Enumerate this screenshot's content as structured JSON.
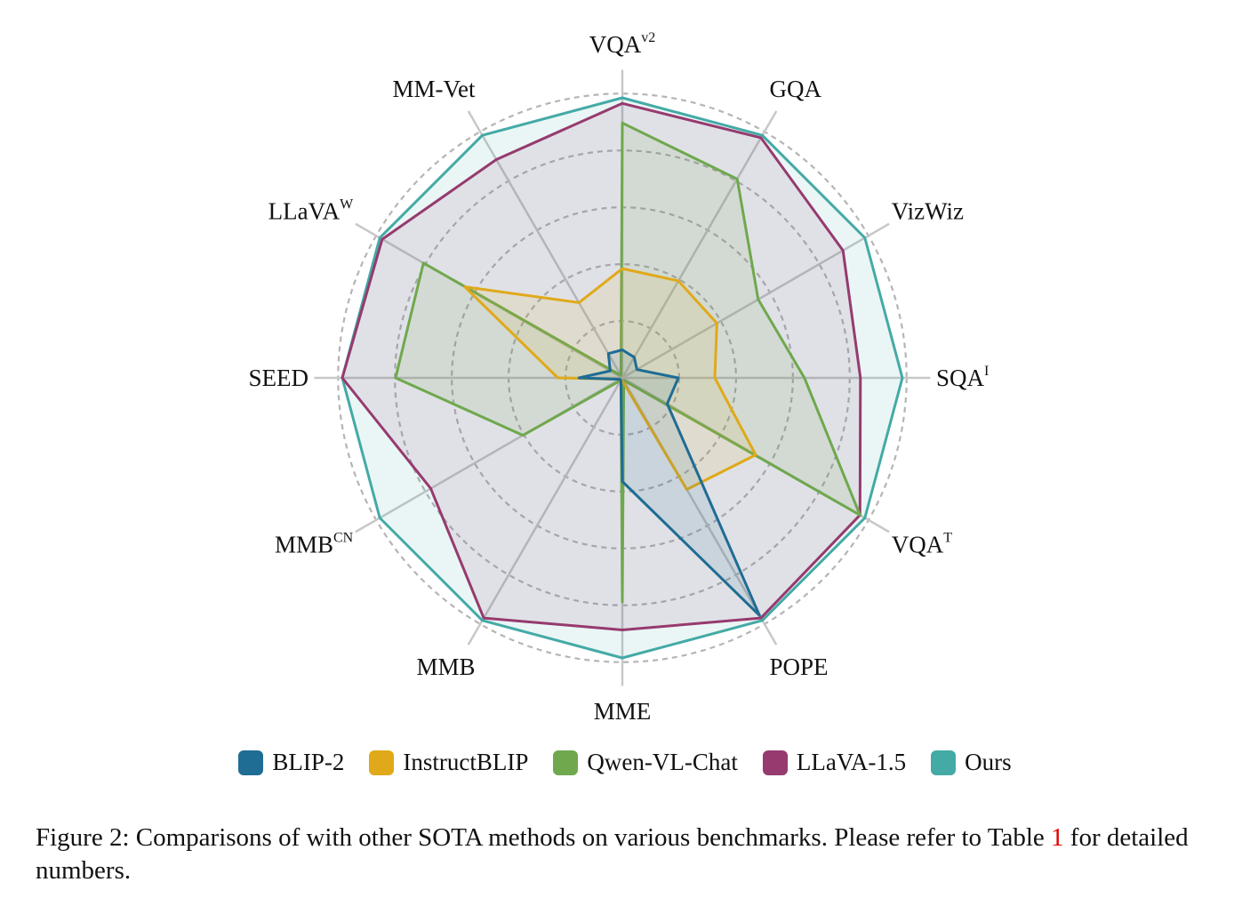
{
  "chart_data": {
    "type": "radar",
    "axes": [
      {
        "label": "VQA",
        "sup": "v2"
      },
      {
        "label": "GQA",
        "sup": ""
      },
      {
        "label": "VizWiz",
        "sup": ""
      },
      {
        "label": "SQA",
        "sup": "I"
      },
      {
        "label": "VQA",
        "sup": "T"
      },
      {
        "label": "POPE",
        "sup": ""
      },
      {
        "label": "MME",
        "sup": ""
      },
      {
        "label": "MMB",
        "sup": ""
      },
      {
        "label": "MMB",
        "sup": "CN"
      },
      {
        "label": "SEED",
        "sup": ""
      },
      {
        "label": "LLaVA",
        "sup": "W"
      },
      {
        "label": "MM-Vet",
        "sup": ""
      }
    ],
    "scale": {
      "min": 0,
      "max": 1,
      "rings": [
        0.2,
        0.4,
        0.6,
        0.8,
        1.0
      ]
    },
    "series": [
      {
        "name": "BLIP-2",
        "color": "#1f6c94",
        "values": [
          0.1,
          0.085,
          0.06,
          0.2,
          0.185,
          0.98,
          0.37,
          0.01,
          0.01,
          0.155,
          0.05,
          0.1
        ]
      },
      {
        "name": "InstructBLIP",
        "color": "#e0a91a",
        "values": [
          0.39,
          0.4,
          0.39,
          0.33,
          0.55,
          0.46,
          0.01,
          0.01,
          0.01,
          0.23,
          0.65,
          0.31
        ]
      },
      {
        "name": "Qwen-VL-Chat",
        "color": "#6fa84d",
        "values": [
          0.91,
          0.82,
          0.56,
          0.65,
          0.98,
          0.01,
          0.8,
          0.01,
          0.41,
          0.81,
          0.82,
          0.01
        ]
      },
      {
        "name": "LLaVA-1.5",
        "color": "#963a6f",
        "values": [
          0.98,
          0.99,
          0.91,
          0.85,
          0.98,
          0.99,
          0.9,
          0.99,
          0.79,
          1.0,
          0.99,
          0.9
        ]
      },
      {
        "name": "Ours",
        "color": "#44aaa6",
        "values": [
          1.0,
          1.0,
          1.0,
          1.0,
          1.0,
          1.0,
          1.0,
          1.0,
          1.0,
          1.0,
          1.0,
          1.0
        ]
      }
    ]
  },
  "legend": [
    {
      "label": "BLIP-2",
      "color": "#1f6c94"
    },
    {
      "label": "InstructBLIP",
      "color": "#e0a91a"
    },
    {
      "label": "Qwen-VL-Chat",
      "color": "#6fa84d"
    },
    {
      "label": "LLaVA-1.5",
      "color": "#963a6f"
    },
    {
      "label": "Ours",
      "color": "#44aaa6"
    }
  ],
  "caption": {
    "text": "Figure 2: Comparisons of with other SOTA methods on various benchmarks. Please refer to Table ",
    "ref": "1",
    "tail": " for detailed numbers."
  }
}
